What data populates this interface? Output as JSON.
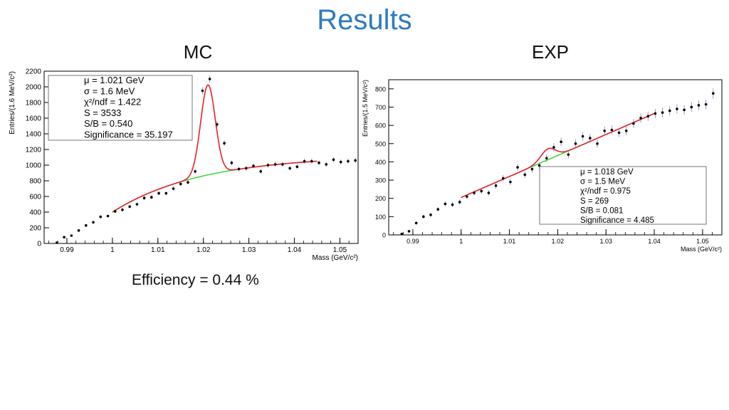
{
  "slide": {
    "title": "Results",
    "efficiency": "Efficiency = 0.44 %"
  },
  "colors": {
    "title": "#2e7bbd",
    "signal_fit": "#e8202a",
    "background_fit": "#2ad42a",
    "points": "#000000",
    "errors": "#7f7fbf"
  },
  "chart_data": [
    {
      "id": "mc",
      "panel_title": "MC",
      "type": "scatter",
      "xlabel": "Mass (GeV/c²)",
      "ylabel": "Entries/(1.6 MeV/c²)",
      "xlim": [
        0.985,
        1.054
      ],
      "ylim": [
        0,
        2200
      ],
      "xticks": [
        0.99,
        1,
        1.01,
        1.02,
        1.03,
        1.04,
        1.05
      ],
      "xtick_labels": [
        "0.99",
        "1",
        "1.01",
        "1.02",
        "1.03",
        "1.04",
        "1.05"
      ],
      "yticks": [
        0,
        200,
        400,
        600,
        800,
        1000,
        1200,
        1400,
        1600,
        1800,
        2000,
        2200
      ],
      "ytick_labels": [
        "0",
        "200",
        "400",
        "600",
        "800",
        "1000",
        "1200",
        "1400",
        "1600",
        "1800",
        "2000",
        "2200"
      ],
      "points": {
        "x": [
          0.9878,
          0.9894,
          0.991,
          0.9926,
          0.9942,
          0.9958,
          0.9974,
          0.999,
          1.0006,
          1.0022,
          1.0038,
          1.0054,
          1.007,
          1.0086,
          1.0102,
          1.0118,
          1.0134,
          1.015,
          1.0166,
          1.0182,
          1.0198,
          1.0214,
          1.023,
          1.0246,
          1.0262,
          1.0278,
          1.0294,
          1.031,
          1.0326,
          1.0342,
          1.0358,
          1.0374,
          1.039,
          1.0406,
          1.0422,
          1.0438,
          1.0454,
          1.047,
          1.0486,
          1.0502,
          1.0518,
          1.0534
        ],
        "y": [
          10,
          80,
          100,
          165,
          230,
          270,
          340,
          350,
          410,
          430,
          470,
          500,
          580,
          590,
          640,
          640,
          700,
          760,
          780,
          920,
          1950,
          2100,
          1520,
          1280,
          1030,
          950,
          960,
          990,
          920,
          1000,
          1010,
          1010,
          960,
          980,
          1050,
          1050,
          1030,
          1010,
          1070,
          1040,
          1050,
          1060
        ]
      },
      "fit": {
        "type": "gauss_plus_background",
        "range": [
          1.0,
          1.045
        ],
        "mean": 1.021,
        "sigma": 0.0016,
        "peak_height": 1150,
        "background_start": 400,
        "background_scale": 650
      },
      "stats": [
        "μ = 1.021 GeV",
        "σ =  1.6 MeV",
        "χ²/ndf = 1.422",
        "S = 3533",
        "S/B = 0.540",
        "Significance = 35.197"
      ]
    },
    {
      "id": "exp",
      "panel_title": "EXP",
      "type": "scatter",
      "xlabel": "Mass (GeV/c²)",
      "ylabel": "Entries/(1.5 MeV/c²)",
      "xlim": [
        0.985,
        1.054
      ],
      "ylim": [
        0,
        850
      ],
      "xticks": [
        0.99,
        1,
        1.01,
        1.02,
        1.03,
        1.04,
        1.05
      ],
      "xtick_labels": [
        "0.99",
        "1",
        "1.01",
        "1.02",
        "1.03",
        "1.04",
        "1.05"
      ],
      "yticks": [
        0,
        100,
        200,
        300,
        400,
        500,
        600,
        700,
        800
      ],
      "ytick_labels": [
        "0",
        "100",
        "200",
        "300",
        "400",
        "500",
        "600",
        "700",
        "800"
      ],
      "points": {
        "x": [
          0.9877,
          0.9892,
          0.9907,
          0.9922,
          0.9937,
          0.9952,
          0.9967,
          0.9982,
          0.9997,
          1.0012,
          1.0027,
          1.0042,
          1.0057,
          1.0072,
          1.0087,
          1.0102,
          1.0117,
          1.0132,
          1.0147,
          1.0162,
          1.0177,
          1.0192,
          1.0207,
          1.0222,
          1.0237,
          1.0252,
          1.0267,
          1.0282,
          1.0297,
          1.0312,
          1.0327,
          1.0342,
          1.0357,
          1.0372,
          1.0387,
          1.0402,
          1.0417,
          1.0432,
          1.0447,
          1.0462,
          1.0477,
          1.0492,
          1.0507,
          1.0522
        ],
        "y": [
          5,
          20,
          65,
          100,
          110,
          140,
          170,
          165,
          180,
          210,
          230,
          240,
          230,
          270,
          310,
          290,
          370,
          330,
          360,
          380,
          420,
          480,
          510,
          440,
          500,
          540,
          530,
          500,
          570,
          575,
          560,
          570,
          610,
          640,
          650,
          665,
          670,
          680,
          690,
          685,
          700,
          710,
          715,
          775
        ]
      },
      "fit": {
        "type": "gauss_plus_line",
        "range": [
          1.0,
          1.04
        ],
        "mean": 1.018,
        "sigma": 0.0015,
        "peak_height": 60,
        "line_start": 205,
        "line_end": 665
      },
      "stats": [
        "μ = 1.018 GeV",
        "σ =  1.5 MeV",
        "χ²/ndf = 0.975",
        "S =  269",
        "S/B = 0.081",
        "Significance = 4.485"
      ]
    }
  ]
}
